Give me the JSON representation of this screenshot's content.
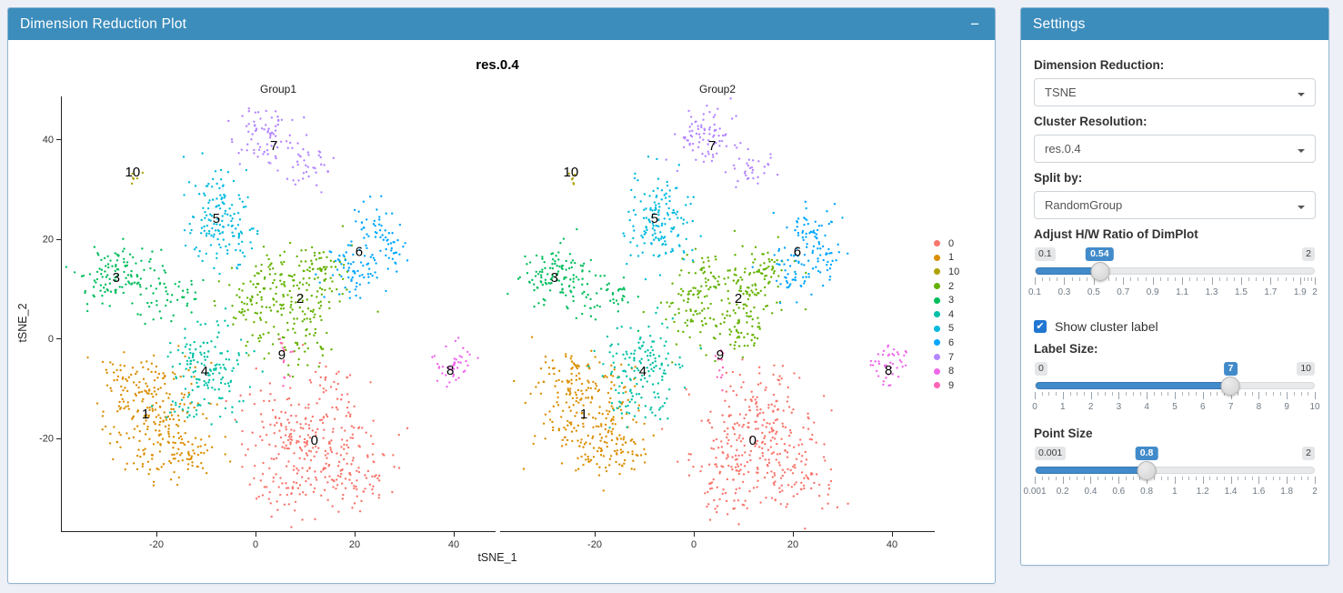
{
  "plot_panel": {
    "title": "Dimension Reduction Plot",
    "collapse_label": "−"
  },
  "settings_panel": {
    "title": "Settings",
    "dim_reduction": {
      "label": "Dimension Reduction:",
      "value": "TSNE"
    },
    "cluster_resolution": {
      "label": "Cluster Resolution:",
      "value": "res.0.4"
    },
    "split_by": {
      "label": "Split by:",
      "value": "RandomGroup"
    },
    "hw_ratio": {
      "label": "Adjust H/W Ratio of DimPlot",
      "min": 0.1,
      "max": 2,
      "value": 0.54,
      "min_label": "0.1",
      "max_label": "2",
      "value_label": "0.54",
      "ticks": [
        "0.1",
        "0.3",
        "0.5",
        "0.7",
        "0.9",
        "1.1",
        "1.3",
        "1.5",
        "1.7",
        "1.9",
        "2"
      ]
    },
    "show_cluster_label": {
      "label": "Show cluster label",
      "checked": true,
      "check_glyph": "✔"
    },
    "label_size": {
      "label": "Label Size:",
      "min": 0,
      "max": 10,
      "value": 7,
      "min_label": "0",
      "max_label": "10",
      "value_label": "7",
      "ticks": [
        "0",
        "1",
        "2",
        "3",
        "4",
        "5",
        "6",
        "7",
        "8",
        "9",
        "10"
      ]
    },
    "point_size": {
      "label": "Point Size",
      "min": 0.001,
      "max": 2,
      "value": 0.8,
      "min_label": "0.001",
      "max_label": "2",
      "value_label": "0.8",
      "ticks": [
        "0.001",
        "0.2",
        "0.4",
        "0.6",
        "0.8",
        "1",
        "1.2",
        "1.4",
        "1.6",
        "1.8",
        "2"
      ]
    }
  },
  "chart_data": {
    "type": "scatter",
    "title": "res.0.4",
    "facets": [
      "Group1",
      "Group2"
    ],
    "facet_seeds": [
      7,
      13
    ],
    "xlabel": "tSNE_1",
    "ylabel": "tSNE_2",
    "x_ticks": [
      -20,
      0,
      20,
      40
    ],
    "y_ticks": [
      40,
      20,
      0,
      -20
    ],
    "xlim": [
      -39,
      48.5
    ],
    "ylim": [
      -38.7,
      48.6
    ],
    "grid": false,
    "legend_position": "right",
    "legend": [
      {
        "label": "0",
        "color": "#F8766D"
      },
      {
        "label": "1",
        "color": "#DB8E00"
      },
      {
        "label": "10",
        "color": "#AEA200"
      },
      {
        "label": "2",
        "color": "#64B200"
      },
      {
        "label": "3",
        "color": "#00BD5C"
      },
      {
        "label": "4",
        "color": "#00C1A7"
      },
      {
        "label": "5",
        "color": "#00BADE"
      },
      {
        "label": "6",
        "color": "#00A6FF"
      },
      {
        "label": "7",
        "color": "#B385FF"
      },
      {
        "label": "8",
        "color": "#EF67EB"
      },
      {
        "label": "9",
        "color": "#FF63B6"
      }
    ],
    "clusters": [
      {
        "label": "0",
        "color": "#F8766D",
        "label_pos": [
          11.9,
          -20.5
        ],
        "blobs": [
          [
            11,
            -19,
            6.5,
            5.5,
            220
          ],
          [
            20,
            -27.5,
            4,
            3.5,
            80
          ],
          [
            6,
            -30,
            3,
            3.5,
            55
          ],
          [
            16,
            -8,
            2.5,
            1.5,
            15
          ]
        ]
      },
      {
        "label": "1",
        "color": "#DB8E00",
        "label_pos": [
          -22.2,
          -15.2
        ],
        "blobs": [
          [
            -21,
            -13,
            5,
            5,
            160
          ],
          [
            -19,
            -22,
            4.5,
            3,
            80
          ],
          [
            -25.5,
            -7,
            3,
            2.5,
            35
          ],
          [
            -13,
            -24,
            2.5,
            2,
            25
          ]
        ]
      },
      {
        "label": "2",
        "color": "#64B200",
        "label_pos": [
          9.0,
          8.0
        ],
        "blobs": [
          [
            9.5,
            9,
            4.5,
            4,
            120
          ],
          [
            -0.5,
            6.5,
            3,
            3.5,
            65
          ],
          [
            14,
            14.5,
            3,
            2.5,
            40
          ],
          [
            9,
            0,
            3.5,
            2.5,
            40
          ],
          [
            2.5,
            13.5,
            2,
            2,
            20
          ]
        ]
      },
      {
        "label": "3",
        "color": "#00BD5C",
        "label_pos": [
          -28.1,
          12.2
        ],
        "blobs": [
          [
            -27,
            12.5,
            4.5,
            2.8,
            125
          ],
          [
            -15,
            9,
            2.2,
            2,
            25
          ],
          [
            -21,
            5.5,
            2,
            1.5,
            12
          ]
        ]
      },
      {
        "label": "4",
        "color": "#00C1A7",
        "label_pos": [
          -10.3,
          -6.6
        ],
        "blobs": [
          [
            -10,
            -5.5,
            4,
            4,
            130
          ],
          [
            -13.5,
            -12.5,
            2.5,
            2,
            20
          ],
          [
            -6,
            -13,
            2,
            2,
            12
          ]
        ]
      },
      {
        "label": "5",
        "color": "#00BADE",
        "label_pos": [
          -7.9,
          24.1
        ],
        "blobs": [
          [
            -7,
            24.5,
            3.5,
            4.5,
            140
          ],
          [
            -3,
            17.5,
            2,
            1.5,
            12
          ]
        ]
      },
      {
        "label": "6",
        "color": "#00A6FF",
        "label_pos": [
          20.9,
          17.4
        ],
        "blobs": [
          [
            23.5,
            21.5,
            2.8,
            3,
            55
          ],
          [
            20,
            13.5,
            2.8,
            2.8,
            60
          ],
          [
            27.5,
            17.5,
            2,
            2.5,
            18
          ]
        ]
      },
      {
        "label": "7",
        "color": "#B385FF",
        "label_pos": [
          3.7,
          38.7
        ],
        "blobs": [
          [
            2,
            40.5,
            3.2,
            3,
            80
          ],
          [
            11.5,
            34.5,
            2.5,
            2,
            32
          ]
        ]
      },
      {
        "label": "8",
        "color": "#EF67EB",
        "label_pos": [
          39.3,
          -6.4
        ],
        "blobs": [
          [
            39.5,
            -5.5,
            2.2,
            2.2,
            42
          ]
        ]
      },
      {
        "label": "9",
        "color": "#FF63B6",
        "label_pos": [
          5.3,
          -3.3
        ],
        "blobs": [
          [
            5.5,
            -3.5,
            1.2,
            1.5,
            8
          ],
          [
            5.8,
            -8,
            0.8,
            1.8,
            5
          ]
        ]
      },
      {
        "label": "10",
        "color": "#AEA200",
        "label_pos": [
          -24.8,
          33.4
        ],
        "blobs": [
          [
            -24.3,
            32,
            0.9,
            0.8,
            6
          ]
        ]
      }
    ]
  }
}
